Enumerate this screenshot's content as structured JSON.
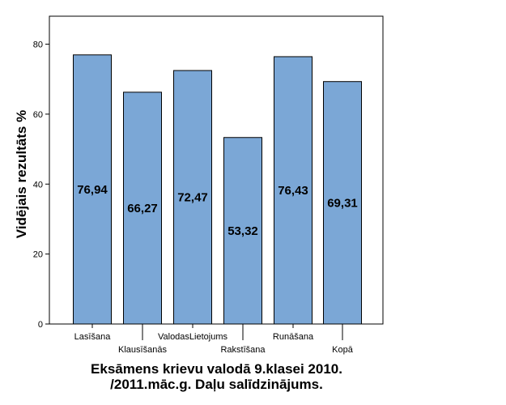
{
  "chart_data": {
    "type": "bar",
    "categories": [
      "Lasīšana",
      "Klausīšanās",
      "ValodasLietojums",
      "Rakstīšana",
      "Runāšana",
      "Kopā"
    ],
    "values": [
      76.94,
      66.27,
      72.47,
      53.32,
      76.43,
      69.31
    ],
    "value_labels": [
      "76,94",
      "66,27",
      "72,47",
      "53,32",
      "76,43",
      "69,31"
    ],
    "ylabel": "Vidējais rezultāts %",
    "xlabel": "",
    "ylim": [
      0,
      88
    ],
    "yticks": [
      0,
      20,
      40,
      60,
      80
    ],
    "grid": false,
    "bar_color": "#7ba7d6",
    "title_lines": [
      "Eksāmens krievu valodā 9.klasei 2010.",
      "/2011.māc.g. Daļu salīdzinājums."
    ]
  }
}
